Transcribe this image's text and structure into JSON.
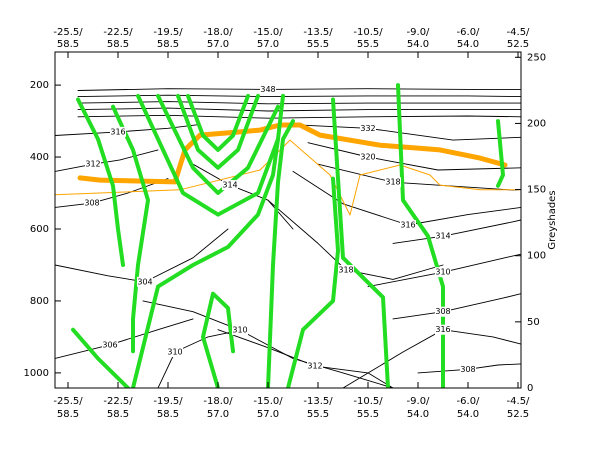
{
  "chart_data": {
    "type": "contour",
    "xlim": [
      -0.26,
      9.06
    ],
    "xticks": [
      {
        "value": 0,
        "label": [
          "-25.5/",
          "58.5"
        ]
      },
      {
        "value": 1,
        "label": [
          "-22.5/",
          "58.5"
        ]
      },
      {
        "value": 2,
        "label": [
          "-19.5/",
          "58.5"
        ]
      },
      {
        "value": 3,
        "label": [
          "-18.0/",
          "57.0"
        ]
      },
      {
        "value": 4,
        "label": [
          "-15.0/",
          "57.0"
        ]
      },
      {
        "value": 5,
        "label": [
          "-13.5/",
          "55.5"
        ]
      },
      {
        "value": 6,
        "label": [
          "-10.5/",
          "55.5"
        ]
      },
      {
        "value": 7,
        "label": [
          "-9.0/",
          "54.0"
        ]
      },
      {
        "value": 8,
        "label": [
          "-6.0/",
          "54.0"
        ]
      },
      {
        "value": 9,
        "label": [
          "-4.5/",
          "52.5"
        ]
      }
    ],
    "ylim": [
      1042,
      108
    ],
    "yticks": [
      200,
      400,
      600,
      800,
      1000
    ],
    "y2lim": [
      0,
      254
    ],
    "y2ticks": [
      0,
      50,
      100,
      150,
      200,
      250
    ],
    "y2label": "Greyshades",
    "contour_color": "#000000",
    "contours": [
      {
        "level": 348,
        "x": [
          0.2,
          2,
          4,
          6,
          8,
          9.06
        ],
        "y": [
          215,
          210,
          212,
          210,
          212,
          212
        ]
      },
      {
        "x": [
          0.2,
          2,
          4,
          6,
          8,
          9.06
        ],
        "y": [
          232,
          228,
          232,
          230,
          230,
          232
        ]
      },
      {
        "x": [
          0.2,
          2,
          4,
          6,
          8,
          9.06
        ],
        "y": [
          250,
          246,
          252,
          250,
          250,
          250
        ]
      },
      {
        "x": [
          0.2,
          2,
          4,
          6,
          8,
          9.06
        ],
        "y": [
          268,
          264,
          272,
          268,
          268,
          268
        ]
      },
      {
        "x": [
          0.2,
          2,
          4,
          6,
          8,
          9.06
        ],
        "y": [
          288,
          284,
          292,
          288,
          286,
          288
        ]
      },
      {
        "level": 332,
        "x": [
          4.5,
          6,
          7.7,
          9.06
        ],
        "y": [
          310,
          320,
          353,
          345
        ]
      },
      {
        "level": 320,
        "x": [
          4.8,
          6,
          7.4,
          9.06
        ],
        "y": [
          360,
          400,
          436,
          430
        ]
      },
      {
        "level": 318,
        "x": [
          5,
          6.5,
          8.9,
          9.06
        ],
        "y": [
          420,
          470,
          492,
          490
        ]
      },
      {
        "level": 316,
        "x": [
          4.5,
          5.5,
          6.8,
          8,
          9.06
        ],
        "y": [
          440,
          530,
          589,
          560,
          540
        ]
      },
      {
        "level": 314,
        "x": [
          6.5,
          7.5,
          8.9,
          9.06
        ],
        "y": [
          640,
          620,
          580,
          575
        ]
      },
      {
        "level": 310,
        "x": [
          6,
          7.5,
          8.8,
          9.06
        ],
        "y": [
          760,
          720,
          678,
          670
        ]
      },
      {
        "level": 308,
        "x": [
          6.5,
          7.5,
          8.7,
          9.06
        ],
        "y": [
          850,
          830,
          792,
          780
        ]
      },
      {
        "level": 308,
        "x": [
          7,
          8,
          8.6,
          9.06
        ],
        "y": [
          1000,
          990,
          978,
          975
        ]
      },
      {
        "level": 316,
        "x": [
          5.5,
          6.7,
          7.5,
          8.5,
          9.06
        ],
        "y": [
          1042,
          942,
          880,
          900,
          920
        ]
      },
      {
        "level": 318,
        "x": [
          4,
          5,
          5.56,
          6.5,
          7.5
        ],
        "y": [
          520,
          640,
          714,
          740,
          700
        ]
      },
      {
        "level": 312,
        "x": [
          3,
          4,
          4.94,
          6,
          6.5
        ],
        "y": [
          880,
          930,
          981,
          1000,
          1042
        ]
      },
      {
        "level": 310,
        "x": [
          1.5,
          2.5,
          3.44,
          4.5,
          5.5,
          6.5
        ],
        "y": [
          800,
          830,
          881,
          960,
          1000,
          1042
        ]
      },
      {
        "level": 304,
        "x": [
          -0.26,
          0.8,
          1.54,
          2.5,
          3.2
        ],
        "y": [
          700,
          730,
          747,
          680,
          600
        ]
      },
      {
        "level": 306,
        "x": [
          -0.26,
          0.84,
          1.8,
          2.5
        ],
        "y": [
          960,
          922,
          880,
          850
        ]
      },
      {
        "level": 310,
        "x": [
          1.8,
          2.14,
          2.8,
          3.5
        ],
        "y": [
          1042,
          942,
          900,
          880
        ]
      },
      {
        "level": 308,
        "x": [
          -0.26,
          0.48,
          1.2,
          2
        ],
        "y": [
          540,
          528,
          500,
          460
        ]
      },
      {
        "level": 312,
        "x": [
          -0.26,
          0.5,
          1.04,
          1.8
        ],
        "y": [
          440,
          420,
          408,
          380
        ]
      },
      {
        "level": 316,
        "x": [
          -0.26,
          1,
          2,
          2.6
        ],
        "y": [
          340,
          330,
          320,
          310
        ]
      },
      {
        "level": 314,
        "x": [
          2.5,
          3.24,
          4,
          4.5
        ],
        "y": [
          420,
          478,
          520,
          600
        ]
      }
    ],
    "green_color": "#22dd22",
    "green_lines": [
      {
        "x": [
          4.0,
          4.1,
          4.2,
          4.3,
          4.5
        ],
        "y": [
          1042,
          700,
          470,
          350,
          300
        ]
      },
      {
        "x": [
          0.9,
          1.3,
          1.6,
          1.4,
          1.3,
          1.3
        ],
        "y": [
          260,
          380,
          520,
          700,
          850,
          940
        ]
      },
      {
        "x": [
          0.2,
          0.6,
          0.9,
          1.0,
          1.1
        ],
        "y": [
          240,
          350,
          480,
          600,
          700
        ]
      },
      {
        "x": [
          2.2,
          2.6,
          3.0,
          3.4,
          3.8
        ],
        "y": [
          230,
          380,
          430,
          380,
          230
        ]
      },
      {
        "x": [
          2.4,
          2.7,
          3.0,
          3.3,
          3.6
        ],
        "y": [
          230,
          340,
          380,
          340,
          230
        ]
      },
      {
        "x": [
          1.8,
          2.5,
          3.0,
          3.6,
          4.2
        ],
        "y": [
          230,
          430,
          500,
          430,
          260
        ]
      },
      {
        "x": [
          1.4,
          2.3,
          3.0,
          3.8,
          4.2,
          4.3
        ],
        "y": [
          230,
          500,
          560,
          500,
          350,
          230
        ]
      },
      {
        "x": [
          1.3,
          1.8,
          2.5,
          3.2,
          3.8,
          4.1,
          4.2
        ],
        "y": [
          1042,
          760,
          700,
          650,
          560,
          450,
          350
        ]
      },
      {
        "x": [
          6.6,
          6.7,
          7.2,
          7.5,
          7.5
        ],
        "y": [
          200,
          520,
          620,
          760,
          1042
        ]
      },
      {
        "x": [
          5.3,
          5.5,
          6.3,
          6.4
        ],
        "y": [
          240,
          680,
          790,
          1042
        ]
      },
      {
        "x": [
          8.6,
          8.7,
          8.6
        ],
        "y": [
          300,
          450,
          480
        ]
      },
      {
        "x": [
          4.4,
          4.7,
          5.3,
          5.4,
          5.3
        ],
        "y": [
          1042,
          880,
          800,
          660,
          460
        ]
      },
      {
        "x": [
          0.1,
          0.6,
          1.2
        ],
        "y": [
          880,
          960,
          1042
        ]
      },
      {
        "x": [
          3.0,
          2.7,
          2.9,
          3.2,
          3.3
        ],
        "y": [
          1042,
          900,
          780,
          820,
          940
        ]
      }
    ],
    "orange_color": "#ffa500",
    "orange_lines": [
      {
        "x": [
          0.24,
          0.64,
          2.14,
          2.34,
          2.64,
          3.44,
          3.84,
          4.24,
          4.64,
          5.04,
          6.24,
          7.44,
          8.24,
          8.74
        ],
        "y": [
          458,
          464,
          469,
          380,
          339,
          330,
          325,
          311,
          311,
          339,
          367,
          380,
          403,
          422
        ]
      },
      {
        "x": [
          -0.26,
          2.24,
          3.84,
          4.44,
          5.24,
          5.64,
          5.84,
          6.64,
          7.24,
          7.44,
          8.24,
          9.04
        ],
        "y": [
          505,
          491,
          436,
          353,
          450,
          561,
          450,
          422,
          450,
          478,
          491,
          491
        ]
      }
    ]
  }
}
